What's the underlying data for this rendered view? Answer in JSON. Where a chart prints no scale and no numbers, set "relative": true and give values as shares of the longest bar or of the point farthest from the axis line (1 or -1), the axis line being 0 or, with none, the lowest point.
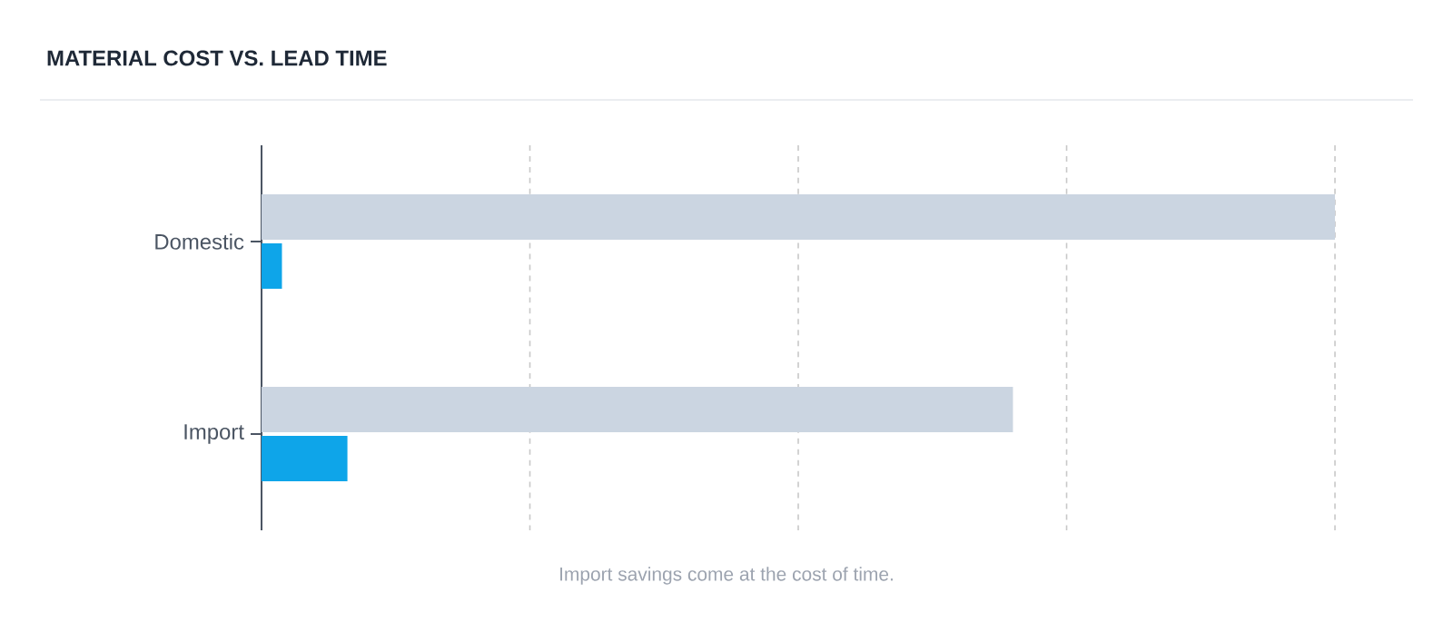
{
  "chart_data": {
    "type": "bar",
    "orientation": "horizontal",
    "relative": true,
    "title": "MATERIAL COST VS. LEAD TIME",
    "categories": [
      "Domestic",
      "Import"
    ],
    "series": [
      {
        "color": "#cbd5e1",
        "values": [
          1,
          0.7
        ]
      },
      {
        "color": "#0ea5e9",
        "values": [
          0.019,
          0.08
        ]
      }
    ],
    "grid": "x",
    "annotations": [
      "Import savings come at the cost of time."
    ]
  }
}
